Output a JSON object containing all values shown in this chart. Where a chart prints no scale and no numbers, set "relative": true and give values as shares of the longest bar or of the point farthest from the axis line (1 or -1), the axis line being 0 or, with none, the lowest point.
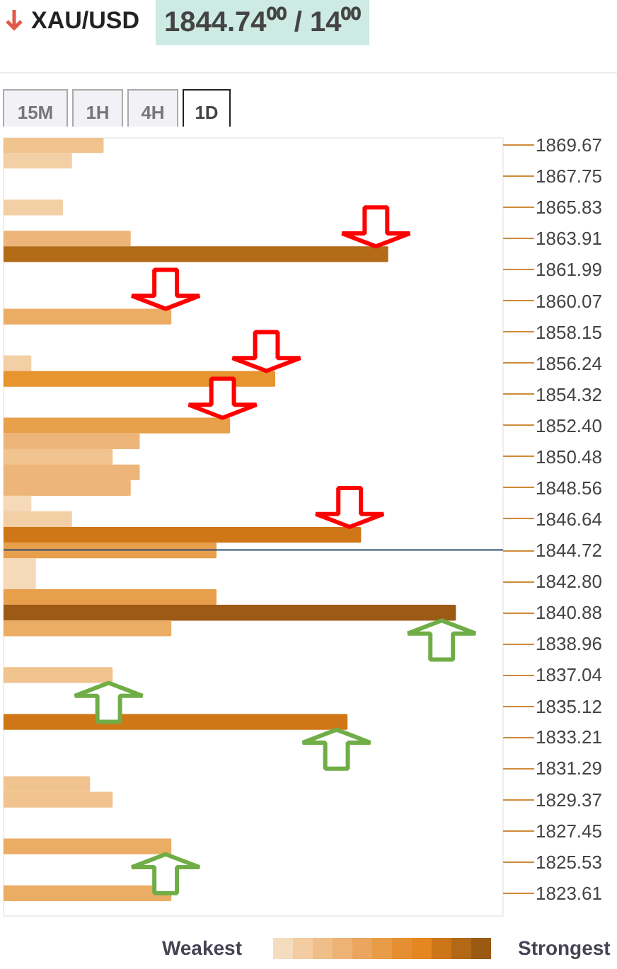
{
  "chart_data": {
    "type": "bar",
    "orientation": "horizontal",
    "relative": true,
    "title": "XAU/USD",
    "subtitle": "1844.74⁰⁰ / 14⁰⁰",
    "annotations": [
      "15M",
      "1H",
      "4H",
      "1D",
      "Weakest",
      "Strongest"
    ],
    "x": [
      1869.67,
      1868.71,
      1865.83,
      1863.91,
      1862.95,
      1859.11,
      1856.24,
      1855.28,
      1852.4,
      1851.44,
      1850.48,
      1849.52,
      1848.56,
      1847.6,
      1846.64,
      1845.68,
      1844.72,
      1843.76,
      1842.8,
      1841.84,
      1840.88,
      1839.92,
      1837.04,
      1834.16,
      1830.33,
      1829.37,
      1826.49,
      1823.61
    ],
    "values": [
      0.22,
      0.15,
      0.13,
      0.28,
      0.85,
      0.37,
      0.06,
      0.6,
      0.5,
      0.3,
      0.24,
      0.3,
      0.28,
      0.06,
      0.15,
      0.79,
      0.47,
      0.07,
      0.07,
      0.47,
      1,
      0.37,
      0.24,
      0.76,
      0.19,
      0.24,
      0.37,
      0.37
    ],
    "colors": [
      "#f0c38f",
      "#f3cfa6",
      "#f3cfa6",
      "#edb579",
      "#b36b17",
      "#ebac64",
      "#f3cfa6",
      "#e6952f",
      "#e8a04a",
      "#edb579",
      "#f0c38f",
      "#edb579",
      "#edb579",
      "#f5d9b8",
      "#f3cfa6",
      "#cf7717",
      "#e89f4c",
      "#f5d9b8",
      "#f5d9b8",
      "#e89f4c",
      "#9c5a14",
      "#ebac64",
      "#f0c38f",
      "#cf7717",
      "#f0c38f",
      "#f0c38f",
      "#ebac64",
      "#ebac64"
    ],
    "ylim": [
      1822.21,
      1870.11
    ],
    "yticks": [
      1869.67,
      1867.75,
      1865.83,
      1863.91,
      1861.99,
      1860.07,
      1858.15,
      1856.24,
      1854.32,
      {
        "value": 1852.4,
        "label": "1852.40"
      },
      1850.48,
      1848.56,
      1846.64,
      1844.72,
      {
        "value": 1842.8,
        "label": "1842.80"
      },
      1840.88,
      1838.96,
      1837.04,
      1835.12,
      1833.21,
      1831.29,
      1829.37,
      1827.45,
      1825.53,
      1823.61
    ],
    "ref_lines": [
      {
        "axis": "y",
        "value": 1844.74,
        "color": "#2c4a6e"
      }
    ]
  }
}
